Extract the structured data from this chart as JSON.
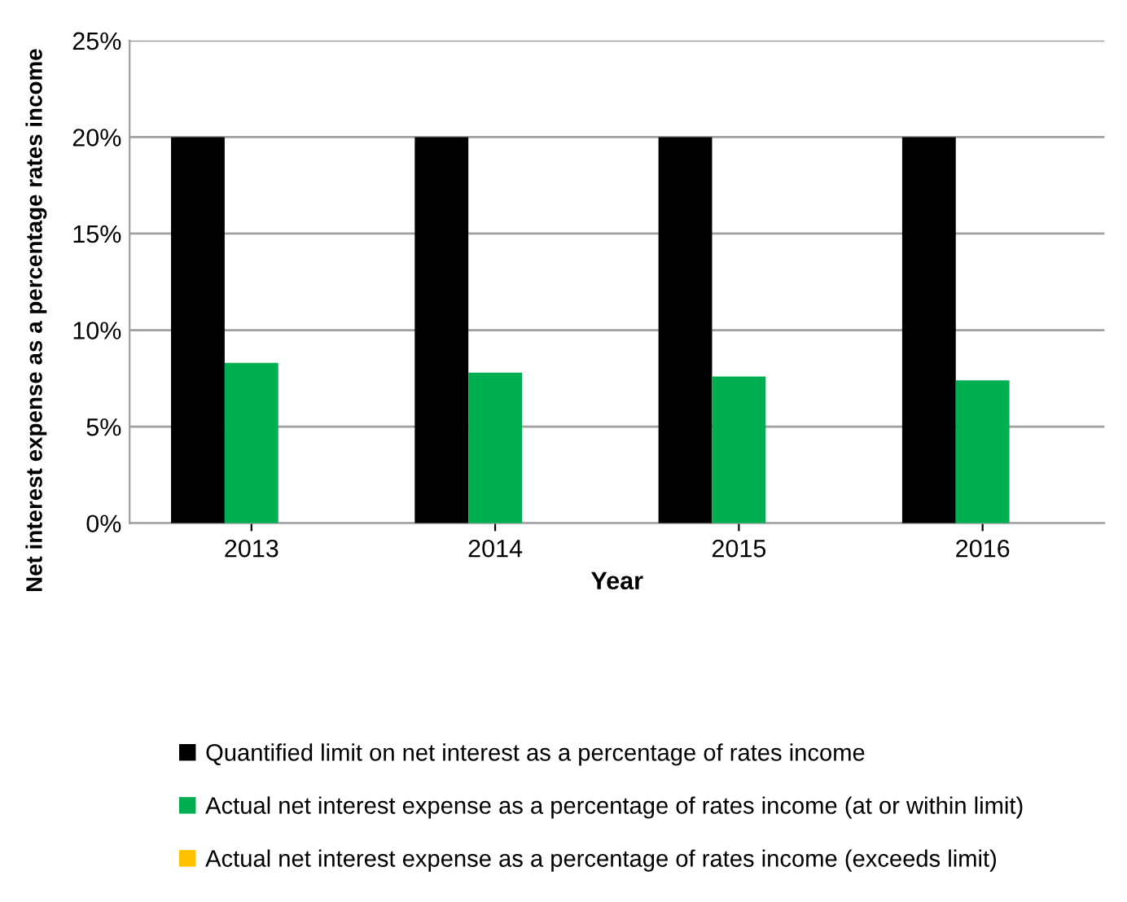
{
  "chart_data": {
    "type": "bar",
    "xlabel": "Year",
    "ylabel": "Net interest expense as a percentage rates income",
    "categories": [
      "2013",
      "2014",
      "2015",
      "2016"
    ],
    "series": [
      {
        "name": "Quantified limit on net interest as a percentage of rates income",
        "color": "#000000",
        "values": [
          20,
          20,
          20,
          20
        ]
      },
      {
        "name": "Actual net interest expense as a percentage of rates income (at or within limit)",
        "color": "#00b050",
        "values": [
          8.3,
          7.8,
          7.6,
          7.4
        ]
      },
      {
        "name": "Actual net interest expense as a percentage of rates income (exceeds limit)",
        "color": "#ffc000",
        "values": [
          null,
          null,
          null,
          null
        ]
      }
    ],
    "ylim": [
      0,
      25
    ],
    "yticks": [
      {
        "value": 0,
        "label": "0%"
      },
      {
        "value": 5,
        "label": "5%"
      },
      {
        "value": 10,
        "label": "10%"
      },
      {
        "value": 15,
        "label": "15%"
      },
      {
        "value": 20,
        "label": "20%"
      },
      {
        "value": 25,
        "label": "25%"
      }
    ],
    "grid": "y",
    "legend": "bottom"
  }
}
